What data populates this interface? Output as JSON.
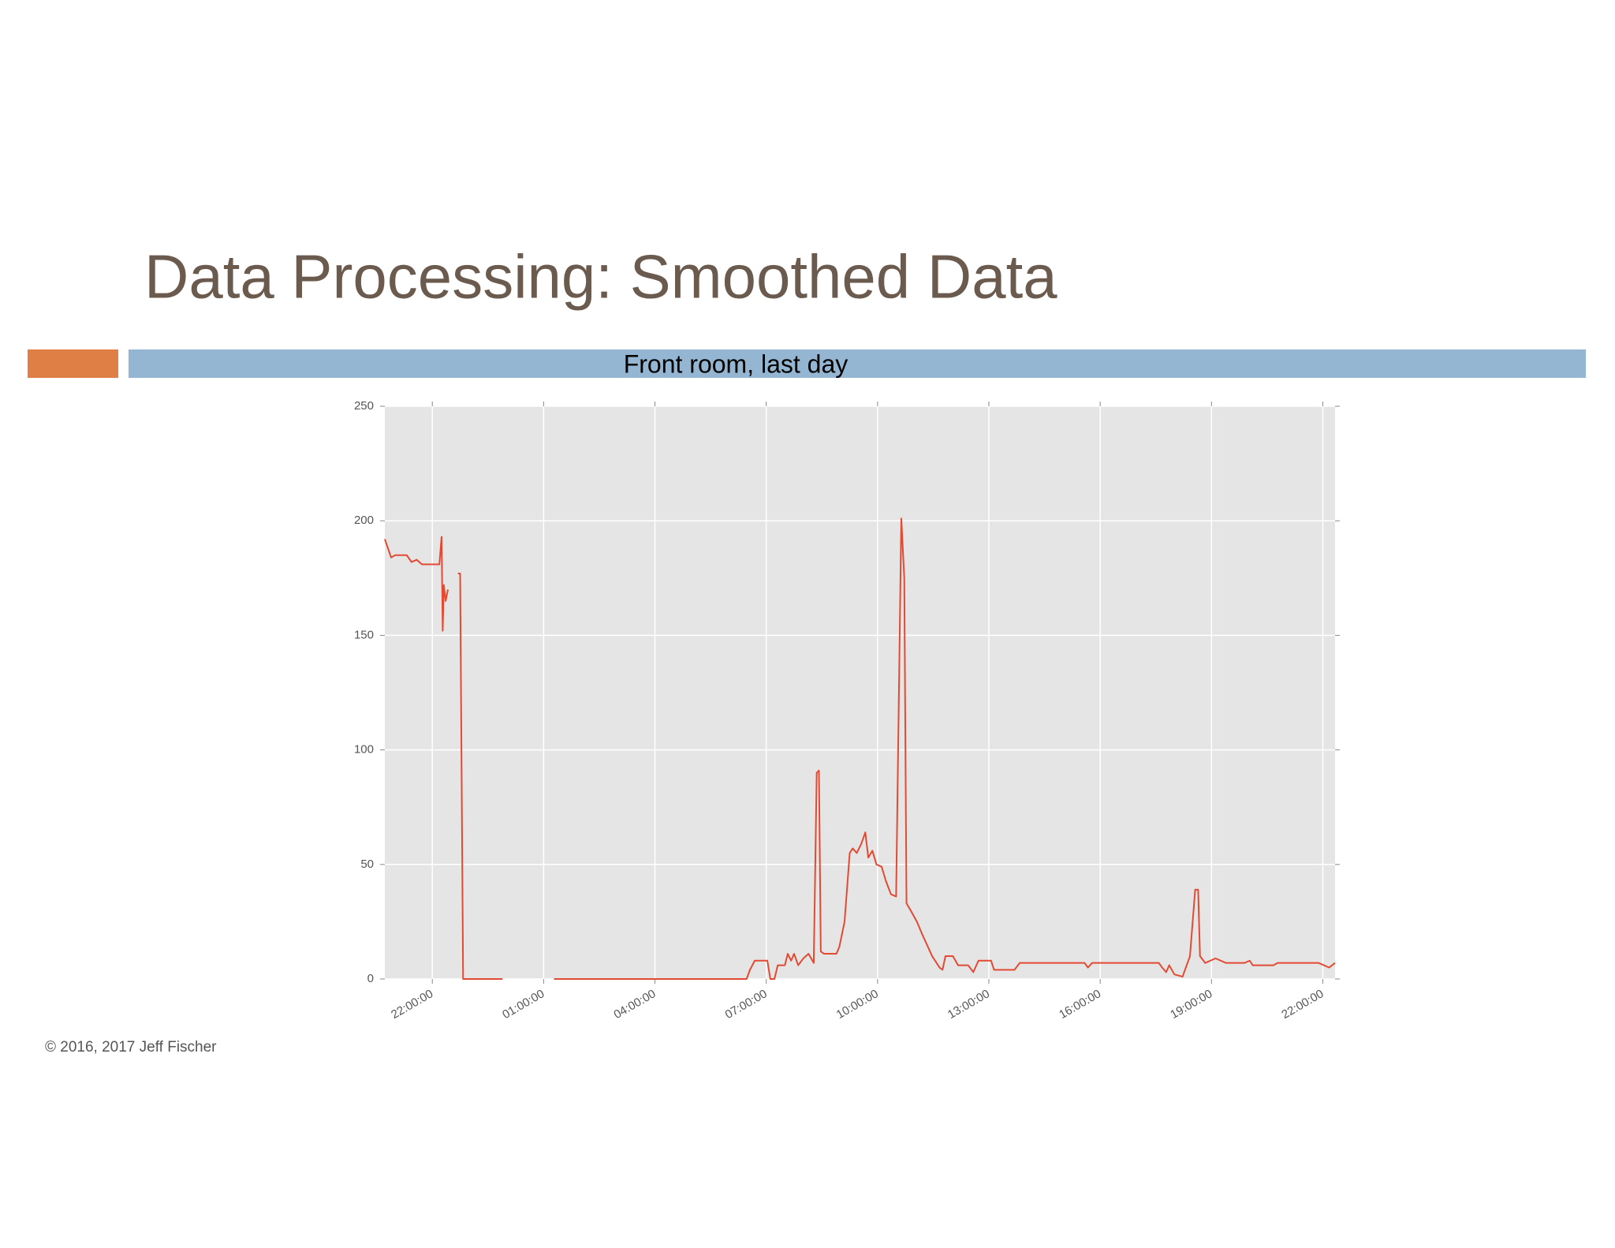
{
  "title": "Data Processing: Smoothed Data",
  "footer": "© 2016, 2017 Jeff Fischer",
  "chart_data": {
    "type": "line",
    "title": "Front room, last day",
    "x": [
      20.72,
      20.89,
      21.0,
      21.31,
      21.44,
      21.58,
      21.72,
      22.0,
      22.19,
      22.25,
      22.28,
      22.31,
      22.36,
      22.42,
      22.56,
      22.69,
      22.75,
      22.83,
      23.89,
      24.58,
      25.28,
      30.47,
      30.56,
      30.69,
      31.03,
      31.11,
      31.22,
      31.31,
      31.5,
      31.58,
      31.67,
      31.75,
      31.86,
      32.0,
      32.14,
      32.28,
      32.36,
      32.42,
      32.47,
      32.56,
      32.89,
      32.97,
      33.11,
      33.25,
      33.33,
      33.44,
      33.56,
      33.67,
      33.75,
      33.86,
      33.97,
      34.11,
      34.22,
      34.36,
      34.5,
      34.64,
      34.72,
      34.78,
      34.89,
      35.06,
      35.19,
      35.33,
      35.47,
      35.67,
      35.75,
      35.83,
      36.03,
      36.17,
      36.44,
      36.58,
      36.72,
      37.06,
      37.14,
      37.69,
      37.83,
      39.58,
      39.67,
      39.78,
      41.58,
      41.67,
      41.78,
      41.86,
      42.0,
      42.22,
      42.42,
      42.56,
      42.64,
      42.69,
      42.83,
      42.97,
      43.11,
      43.25,
      43.39,
      43.89,
      44.03,
      44.11,
      44.67,
      44.78,
      45.89,
      46.03,
      46.17,
      46.33
    ],
    "series": [
      {
        "name": "Front room",
        "color": "#e24a33",
        "values": [
          192,
          184,
          185,
          185,
          182,
          183,
          181,
          181,
          181,
          193,
          152,
          172,
          165,
          170,
          null,
          177,
          177,
          0,
          0,
          null,
          0,
          0,
          4,
          8,
          8,
          0,
          0,
          6,
          6,
          11,
          8,
          11,
          6,
          9,
          11,
          7,
          90,
          91,
          12,
          11,
          11,
          14,
          25,
          55,
          57,
          55,
          59,
          64,
          53,
          56,
          50,
          49,
          43,
          37,
          36,
          201,
          175,
          33,
          30,
          25,
          20,
          15,
          10,
          5,
          4,
          10,
          10,
          6,
          6,
          3,
          8,
          8,
          4,
          4,
          7,
          7,
          5,
          7,
          7,
          5,
          3,
          6,
          2,
          1,
          10,
          39,
          39,
          10,
          7,
          8,
          9,
          8,
          7,
          7,
          8,
          6,
          6,
          7,
          7,
          6,
          5,
          7
        ]
      }
    ],
    "xlim": [
      20.72,
      46.33
    ],
    "xticks": [
      {
        "value": 22,
        "label": "22:00:00"
      },
      {
        "value": 25,
        "label": "01:00:00"
      },
      {
        "value": 28,
        "label": "04:00:00"
      },
      {
        "value": 31,
        "label": "07:00:00"
      },
      {
        "value": 34,
        "label": "10:00:00"
      },
      {
        "value": 37,
        "label": "13:00:00"
      },
      {
        "value": 40,
        "label": "16:00:00"
      },
      {
        "value": 43,
        "label": "19:00:00"
      },
      {
        "value": 46,
        "label": "22:00:00"
      }
    ],
    "ylim": [
      0,
      250
    ],
    "yticks": [
      0,
      50,
      100,
      150,
      200,
      250
    ],
    "grid": true
  }
}
